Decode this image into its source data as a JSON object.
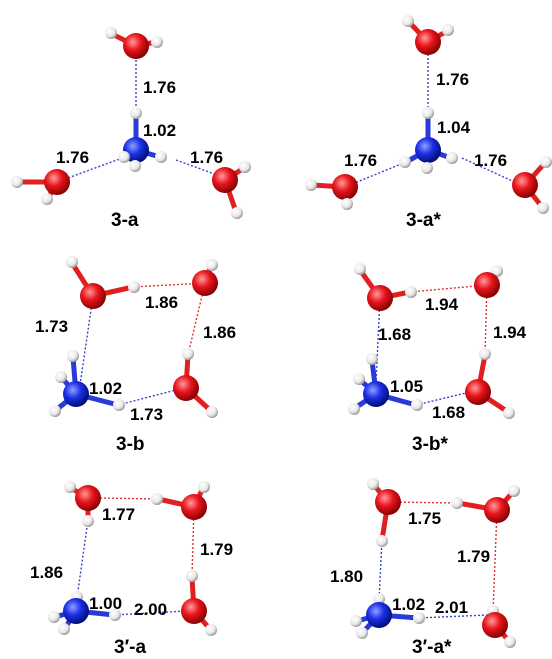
{
  "colors": {
    "oxygen": "#e8141c",
    "nitrogen": "#1a2fe6",
    "hydrogen": "#f4f4f4",
    "bond_red": "#e02020",
    "bond_blue": "#2a3ad8",
    "hbond_red": "#e03030",
    "hbond_blue": "#3344cc"
  },
  "panels": [
    {
      "label": "3-a",
      "distances": [
        "1.76",
        "1.02",
        "1.76",
        "1.76"
      ]
    },
    {
      "label": "3-a*",
      "distances": [
        "1.76",
        "1.04",
        "1.76",
        "1.76"
      ]
    },
    {
      "label": "3-b",
      "distances": [
        "1.86",
        "1.73",
        "1.86",
        "1.02",
        "1.73"
      ]
    },
    {
      "label": "3-b*",
      "distances": [
        "1.94",
        "1.68",
        "1.94",
        "1.05",
        "1.68"
      ]
    },
    {
      "label": "3′-a",
      "distances": [
        "1.77",
        "1.79",
        "1.86",
        "1.00",
        "2.00"
      ]
    },
    {
      "label": "3′-a*",
      "distances": [
        "1.75",
        "1.79",
        "1.80",
        "1.02",
        "2.01"
      ]
    }
  ]
}
